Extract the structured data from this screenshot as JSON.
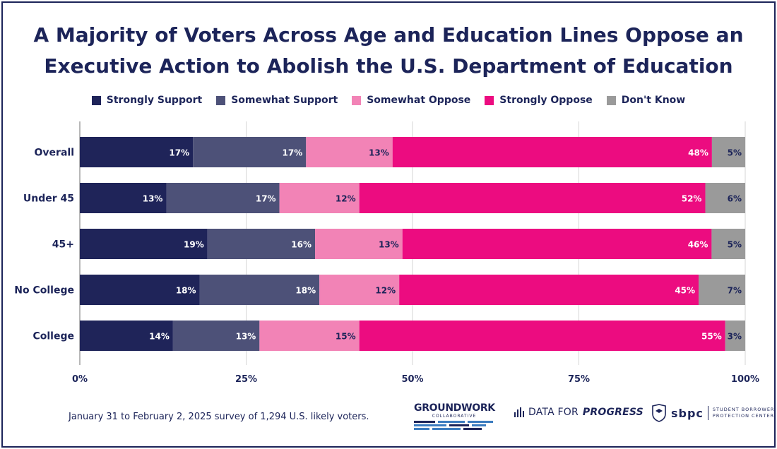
{
  "title_line1": "A Majority of Voters Across Age and Education Lines Oppose an",
  "title_line2": "Executive Action to Abolish the U.S. Department of Education",
  "legend": [
    {
      "label": "Strongly Support",
      "color": "#1f2459"
    },
    {
      "label": "Somewhat Support",
      "color": "#4d5178"
    },
    {
      "label": "Somewhat Oppose",
      "color": "#f283b6"
    },
    {
      "label": "Strongly Oppose",
      "color": "#ec0c80"
    },
    {
      "label": "Don't Know",
      "color": "#9a9a9a"
    }
  ],
  "chart_data": {
    "type": "bar",
    "orientation": "horizontal",
    "stacked": true,
    "categories": [
      "Overall",
      "Under 45",
      "45+",
      "No College",
      "College"
    ],
    "series": [
      {
        "name": "Strongly Support",
        "color": "#1f2459",
        "values": [
          17,
          13,
          19,
          18,
          14
        ]
      },
      {
        "name": "Somewhat Support",
        "color": "#4d5178",
        "values": [
          17,
          17,
          16,
          18,
          13
        ]
      },
      {
        "name": "Somewhat Oppose",
        "color": "#f283b6",
        "values": [
          13,
          12,
          13,
          12,
          15
        ]
      },
      {
        "name": "Strongly Oppose",
        "color": "#ec0c80",
        "values": [
          48,
          52,
          46,
          45,
          55
        ]
      },
      {
        "name": "Don't Know",
        "color": "#9a9a9a",
        "values": [
          5,
          6,
          5,
          7,
          3
        ]
      }
    ],
    "xlim": [
      0,
      100
    ],
    "xticks": [
      "0%",
      "25%",
      "50%",
      "75%",
      "100%"
    ],
    "value_suffix": "%",
    "grid": true,
    "legend_position": "top"
  },
  "footer": {
    "note": "January 31 to February 2, 2025 survey of 1,294 U.S. likely voters.",
    "logo1_word": "GROUNDWORK",
    "logo1_sub": "COLLABORATIVE",
    "logo2_a": "DATA FOR",
    "logo2_b": "PROGRESS",
    "logo3_mark": "sbpc",
    "logo3_line1": "STUDENT BORROWER",
    "logo3_line2": "PROTECTION CENTER"
  }
}
